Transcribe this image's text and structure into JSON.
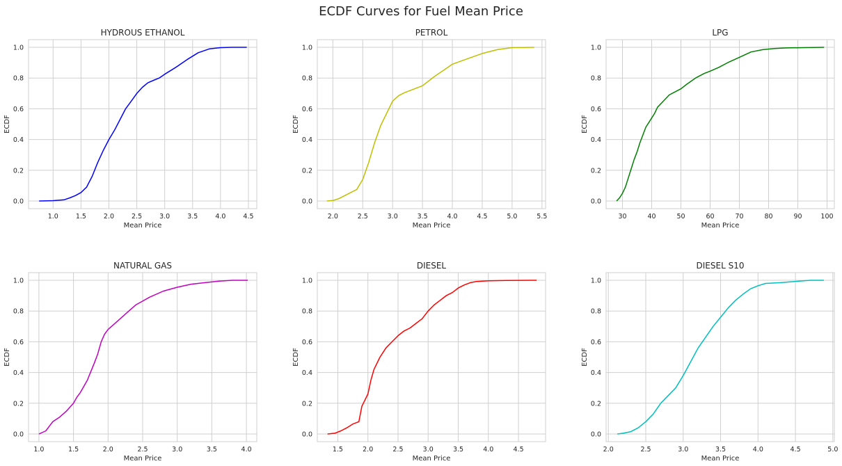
{
  "figure": {
    "title": "ECDF Curves for Fuel Mean Price"
  },
  "chart_data": [
    {
      "type": "line",
      "title": "HYDROUS ETHANOL",
      "xlabel": "Mean Price",
      "ylabel": "ECDF",
      "color": "#0000ff",
      "xlim": [
        0.56,
        4.65
      ],
      "ylim": [
        -0.05,
        1.05
      ],
      "xticks": [
        1.0,
        1.5,
        2.0,
        2.5,
        3.0,
        3.5,
        4.0,
        4.5
      ],
      "yticks": [
        0.0,
        0.2,
        0.4,
        0.6,
        0.8,
        1.0
      ],
      "grid": true,
      "points": [
        [
          0.75,
          0
        ],
        [
          1.0,
          0.002
        ],
        [
          1.2,
          0.008
        ],
        [
          1.3,
          0.02
        ],
        [
          1.4,
          0.035
        ],
        [
          1.5,
          0.055
        ],
        [
          1.6,
          0.09
        ],
        [
          1.7,
          0.16
        ],
        [
          1.8,
          0.25
        ],
        [
          1.9,
          0.33
        ],
        [
          2.0,
          0.4
        ],
        [
          2.1,
          0.46
        ],
        [
          2.2,
          0.53
        ],
        [
          2.3,
          0.6
        ],
        [
          2.4,
          0.65
        ],
        [
          2.5,
          0.7
        ],
        [
          2.6,
          0.74
        ],
        [
          2.7,
          0.77
        ],
        [
          2.8,
          0.785
        ],
        [
          2.9,
          0.8
        ],
        [
          3.0,
          0.825
        ],
        [
          3.2,
          0.87
        ],
        [
          3.4,
          0.92
        ],
        [
          3.6,
          0.965
        ],
        [
          3.8,
          0.99
        ],
        [
          4.0,
          0.998
        ],
        [
          4.2,
          1.0
        ],
        [
          4.47,
          1.0
        ]
      ]
    },
    {
      "type": "line",
      "title": "PETROL",
      "xlabel": "Mean Price",
      "ylabel": "ECDF",
      "color": "#bfbf00",
      "xlim": [
        1.74,
        5.56
      ],
      "ylim": [
        -0.05,
        1.05
      ],
      "xticks": [
        2.0,
        2.5,
        3.0,
        3.5,
        4.0,
        4.5,
        5.0,
        5.5
      ],
      "yticks": [
        0.0,
        0.2,
        0.4,
        0.6,
        0.8,
        1.0
      ],
      "grid": true,
      "points": [
        [
          1.9,
          0
        ],
        [
          2.0,
          0.003
        ],
        [
          2.1,
          0.015
        ],
        [
          2.2,
          0.035
        ],
        [
          2.3,
          0.055
        ],
        [
          2.4,
          0.075
        ],
        [
          2.5,
          0.14
        ],
        [
          2.6,
          0.25
        ],
        [
          2.7,
          0.38
        ],
        [
          2.8,
          0.49
        ],
        [
          2.9,
          0.57
        ],
        [
          3.0,
          0.65
        ],
        [
          3.1,
          0.685
        ],
        [
          3.2,
          0.705
        ],
        [
          3.3,
          0.72
        ],
        [
          3.5,
          0.75
        ],
        [
          3.7,
          0.81
        ],
        [
          3.85,
          0.85
        ],
        [
          4.0,
          0.89
        ],
        [
          4.25,
          0.925
        ],
        [
          4.5,
          0.96
        ],
        [
          4.75,
          0.985
        ],
        [
          5.0,
          0.998
        ],
        [
          5.37,
          1.0
        ]
      ]
    },
    {
      "type": "line",
      "title": "LPG",
      "xlabel": "Mean Price",
      "ylabel": "ECDF",
      "color": "#008000",
      "xlim": [
        24.4,
        102.5
      ],
      "ylim": [
        -0.05,
        1.05
      ],
      "xticks": [
        30,
        40,
        50,
        60,
        70,
        80,
        90,
        100
      ],
      "yticks": [
        0.0,
        0.2,
        0.4,
        0.6,
        0.8,
        1.0
      ],
      "grid": true,
      "points": [
        [
          28,
          0
        ],
        [
          29,
          0.02
        ],
        [
          30,
          0.05
        ],
        [
          31,
          0.09
        ],
        [
          32,
          0.15
        ],
        [
          33,
          0.21
        ],
        [
          34,
          0.27
        ],
        [
          35,
          0.32
        ],
        [
          36,
          0.38
        ],
        [
          37,
          0.43
        ],
        [
          38,
          0.48
        ],
        [
          39,
          0.51
        ],
        [
          40,
          0.54
        ],
        [
          41,
          0.57
        ],
        [
          42,
          0.61
        ],
        [
          44,
          0.65
        ],
        [
          46,
          0.69
        ],
        [
          48,
          0.71
        ],
        [
          50,
          0.73
        ],
        [
          52,
          0.76
        ],
        [
          55,
          0.8
        ],
        [
          58,
          0.83
        ],
        [
          60,
          0.845
        ],
        [
          63,
          0.87
        ],
        [
          66,
          0.9
        ],
        [
          70,
          0.935
        ],
        [
          74,
          0.97
        ],
        [
          78,
          0.985
        ],
        [
          82,
          0.992
        ],
        [
          86,
          0.996
        ],
        [
          92,
          0.998
        ],
        [
          99,
          1.0
        ]
      ]
    },
    {
      "type": "line",
      "title": "NATURAL GAS",
      "xlabel": "Mean Price",
      "ylabel": "ECDF",
      "color": "#bf00bf",
      "xlim": [
        0.85,
        4.15
      ],
      "ylim": [
        -0.05,
        1.05
      ],
      "xticks": [
        1.0,
        1.5,
        2.0,
        2.5,
        3.0,
        3.5,
        4.0
      ],
      "yticks": [
        0.0,
        0.2,
        0.4,
        0.6,
        0.8,
        1.0
      ],
      "grid": true,
      "points": [
        [
          1.0,
          0
        ],
        [
          1.1,
          0.02
        ],
        [
          1.15,
          0.05
        ],
        [
          1.2,
          0.08
        ],
        [
          1.3,
          0.11
        ],
        [
          1.4,
          0.15
        ],
        [
          1.5,
          0.2
        ],
        [
          1.55,
          0.24
        ],
        [
          1.6,
          0.27
        ],
        [
          1.7,
          0.35
        ],
        [
          1.8,
          0.46
        ],
        [
          1.85,
          0.52
        ],
        [
          1.9,
          0.6
        ],
        [
          1.95,
          0.65
        ],
        [
          2.0,
          0.68
        ],
        [
          2.1,
          0.72
        ],
        [
          2.2,
          0.76
        ],
        [
          2.3,
          0.8
        ],
        [
          2.4,
          0.84
        ],
        [
          2.5,
          0.865
        ],
        [
          2.6,
          0.89
        ],
        [
          2.8,
          0.93
        ],
        [
          3.0,
          0.955
        ],
        [
          3.2,
          0.975
        ],
        [
          3.4,
          0.985
        ],
        [
          3.6,
          0.995
        ],
        [
          3.8,
          1.0
        ],
        [
          4.02,
          1.0
        ]
      ]
    },
    {
      "type": "line",
      "title": "DIESEL",
      "xlabel": "Mean Price",
      "ylabel": "ECDF",
      "color": "#ff0000",
      "xlim": [
        1.16,
        4.95
      ],
      "ylim": [
        -0.05,
        1.05
      ],
      "xticks": [
        1.5,
        2.0,
        2.5,
        3.0,
        3.5,
        4.0,
        4.5
      ],
      "yticks": [
        0.0,
        0.2,
        0.4,
        0.6,
        0.8,
        1.0
      ],
      "grid": true,
      "points": [
        [
          1.33,
          0
        ],
        [
          1.45,
          0.005
        ],
        [
          1.55,
          0.02
        ],
        [
          1.65,
          0.04
        ],
        [
          1.75,
          0.065
        ],
        [
          1.85,
          0.08
        ],
        [
          1.9,
          0.18
        ],
        [
          2.0,
          0.26
        ],
        [
          2.05,
          0.35
        ],
        [
          2.1,
          0.42
        ],
        [
          2.2,
          0.5
        ],
        [
          2.3,
          0.56
        ],
        [
          2.4,
          0.6
        ],
        [
          2.5,
          0.64
        ],
        [
          2.6,
          0.67
        ],
        [
          2.7,
          0.69
        ],
        [
          2.8,
          0.72
        ],
        [
          2.9,
          0.75
        ],
        [
          3.0,
          0.8
        ],
        [
          3.1,
          0.84
        ],
        [
          3.2,
          0.87
        ],
        [
          3.3,
          0.9
        ],
        [
          3.4,
          0.92
        ],
        [
          3.5,
          0.95
        ],
        [
          3.6,
          0.97
        ],
        [
          3.7,
          0.985
        ],
        [
          3.8,
          0.992
        ],
        [
          4.0,
          0.997
        ],
        [
          4.3,
          0.999
        ],
        [
          4.8,
          1.0
        ]
      ]
    },
    {
      "type": "line",
      "title": "DIESEL S10",
      "xlabel": "Mean Price",
      "ylabel": "ECDF",
      "color": "#00bfbf",
      "xlim": [
        1.97,
        5.02
      ],
      "ylim": [
        -0.05,
        1.05
      ],
      "xticks": [
        2.0,
        2.5,
        3.0,
        3.5,
        4.0,
        4.5,
        5.0
      ],
      "yticks": [
        0.0,
        0.2,
        0.4,
        0.6,
        0.8,
        1.0
      ],
      "grid": true,
      "points": [
        [
          2.12,
          0
        ],
        [
          2.2,
          0.005
        ],
        [
          2.3,
          0.015
        ],
        [
          2.4,
          0.04
        ],
        [
          2.5,
          0.08
        ],
        [
          2.6,
          0.13
        ],
        [
          2.7,
          0.2
        ],
        [
          2.8,
          0.25
        ],
        [
          2.9,
          0.3
        ],
        [
          3.0,
          0.38
        ],
        [
          3.1,
          0.47
        ],
        [
          3.2,
          0.56
        ],
        [
          3.3,
          0.63
        ],
        [
          3.4,
          0.7
        ],
        [
          3.5,
          0.76
        ],
        [
          3.6,
          0.82
        ],
        [
          3.7,
          0.87
        ],
        [
          3.8,
          0.91
        ],
        [
          3.9,
          0.945
        ],
        [
          4.0,
          0.965
        ],
        [
          4.1,
          0.98
        ],
        [
          4.3,
          0.985
        ],
        [
          4.5,
          0.993
        ],
        [
          4.7,
          1.0
        ],
        [
          4.88,
          1.0
        ]
      ]
    }
  ]
}
